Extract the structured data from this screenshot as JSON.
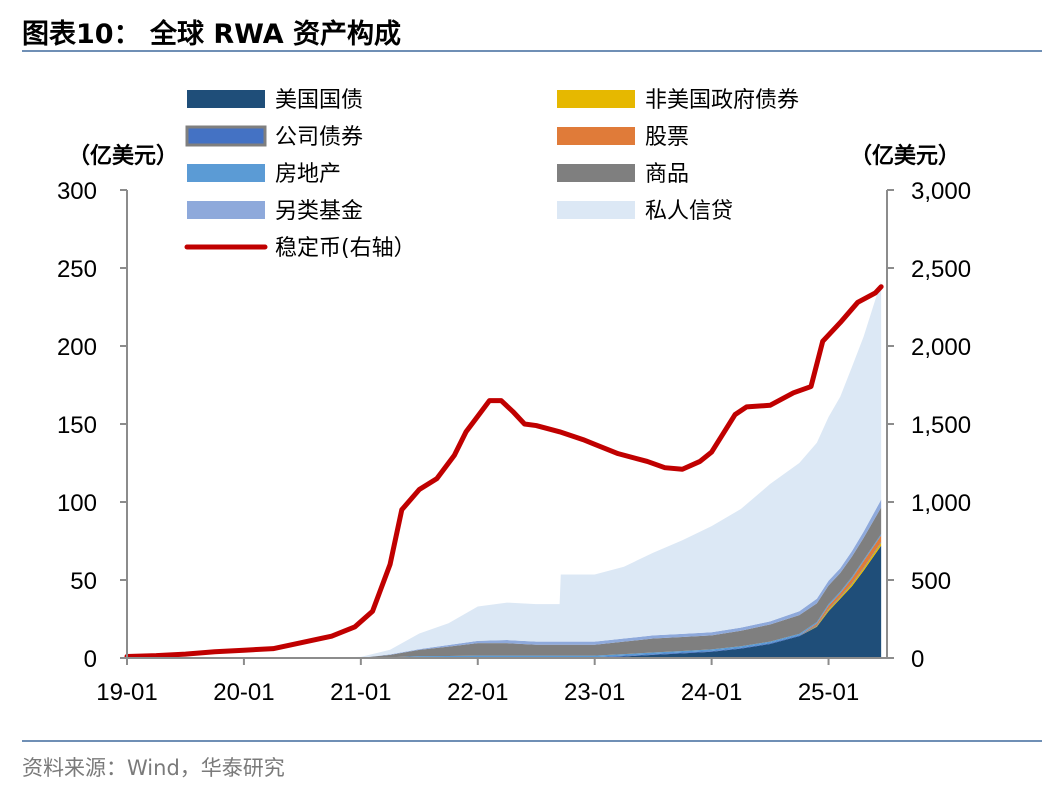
{
  "header": {
    "title": "图表10：  全球 RWA 资产构成"
  },
  "footer": {
    "source": "资料来源：Wind，华泰研究"
  },
  "colors": {
    "us_treasury": "#1f4e79",
    "corporate_bond": "#4472c4",
    "real_estate": "#5b9bd5",
    "alt_fund": "#8ea9db",
    "non_us_gov": "#e6b800",
    "stocks": "#e07b39",
    "commodities": "#7f7f7f",
    "private_credit": "#dce8f5",
    "stablecoin": "#c00000",
    "axis": "#8c8c8c"
  },
  "chart_data": {
    "type": "area",
    "left_unit": "（亿美元）",
    "right_unit": "（亿美元）",
    "left_ylim": [
      0,
      300
    ],
    "right_ylim": [
      0,
      3000
    ],
    "left_ticks": [
      "0",
      "50",
      "100",
      "150",
      "200",
      "250",
      "300"
    ],
    "right_ticks": [
      "0",
      "500",
      "1,000",
      "1,500",
      "2,000",
      "2,500",
      "3,000"
    ],
    "x_ticks": [
      "19-01",
      "20-01",
      "21-01",
      "22-01",
      "23-01",
      "24-01",
      "25-01"
    ],
    "grid": false,
    "legend_placement": "top",
    "x": [
      2019.0,
      2019.5,
      2020.0,
      2020.5,
      2021.0,
      2021.25,
      2021.5,
      2021.75,
      2022.0,
      2022.25,
      2022.5,
      2022.7,
      2022.71,
      2023.0,
      2023.25,
      2023.5,
      2023.75,
      2024.0,
      2024.25,
      2024.5,
      2024.75,
      2024.9,
      2025.0,
      2025.1,
      2025.2,
      2025.3,
      2025.45
    ],
    "stacked_series": [
      {
        "name": "美国国债",
        "key": "us_treasury",
        "values": [
          0,
          0,
          0,
          0,
          0,
          0,
          0,
          0,
          0,
          0,
          0,
          0,
          0,
          0,
          1,
          2,
          3,
          4,
          6,
          9,
          14,
          20,
          30,
          38,
          46,
          56,
          72
        ]
      },
      {
        "name": "非美国政府债券",
        "key": "non_us_gov",
        "values": [
          0,
          0,
          0,
          0,
          0,
          0,
          0,
          0,
          0,
          0,
          0,
          0,
          0,
          0,
          0,
          0,
          0,
          0,
          0,
          0,
          0,
          0.5,
          1,
          1,
          1.5,
          1.5,
          2
        ]
      },
      {
        "name": "公司债券",
        "key": "corporate_bond",
        "values": [
          0,
          0,
          0,
          0,
          0,
          0,
          0.2,
          0.3,
          0.5,
          0.5,
          0.5,
          0.5,
          0.5,
          0.5,
          0.5,
          0.5,
          0.5,
          0.5,
          0.5,
          0.5,
          0.5,
          0.5,
          0.5,
          0.5,
          0.5,
          0.5,
          0.5
        ]
      },
      {
        "name": "股票",
        "key": "stocks",
        "values": [
          0,
          0,
          0,
          0,
          0,
          0,
          0,
          0,
          0,
          0,
          0,
          0,
          0,
          0,
          0,
          0,
          0,
          0,
          0,
          0,
          0,
          1,
          2,
          2,
          3,
          4,
          4
        ]
      },
      {
        "name": "房地产",
        "key": "real_estate",
        "values": [
          0,
          0,
          0,
          0,
          0,
          0.5,
          1,
          1,
          1,
          1,
          1,
          1,
          1,
          1,
          1,
          1,
          1,
          1,
          1,
          1,
          1,
          1,
          1,
          1,
          1,
          1,
          1
        ]
      },
      {
        "name": "商品",
        "key": "commodities",
        "values": [
          0,
          0,
          0,
          0,
          0.2,
          1.5,
          4,
          6,
          8,
          8,
          7,
          7,
          7,
          7,
          8,
          9,
          9,
          9,
          10,
          11,
          12,
          12,
          12,
          12,
          13,
          14,
          17
        ]
      },
      {
        "name": "另类基金",
        "key": "alt_fund",
        "values": [
          0,
          0,
          0,
          0,
          0,
          0.3,
          0.5,
          1,
          1.5,
          2,
          2,
          2,
          2,
          2,
          2,
          2,
          2,
          2,
          2,
          2,
          2.5,
          3,
          3,
          3,
          3.5,
          4,
          5
        ]
      },
      {
        "name": "私人信贷",
        "key": "private_credit",
        "values": [
          0,
          0,
          0,
          0,
          0.5,
          3,
          10,
          14,
          22,
          24,
          24,
          24,
          43,
          43,
          46,
          53,
          60,
          68,
          76,
          88,
          95,
          100,
          105,
          110,
          118,
          125,
          140
        ]
      }
    ],
    "line_series": {
      "name": "稳定币(右轴)",
      "key": "stablecoin",
      "axis": "right",
      "x": [
        2019.0,
        2019.25,
        2019.5,
        2019.75,
        2020.0,
        2020.25,
        2020.5,
        2020.75,
        2020.95,
        2021.1,
        2021.25,
        2021.35,
        2021.5,
        2021.65,
        2021.8,
        2021.9,
        2022.0,
        2022.1,
        2022.2,
        2022.3,
        2022.4,
        2022.5,
        2022.7,
        2022.9,
        2023.0,
        2023.2,
        2023.45,
        2023.6,
        2023.75,
        2023.9,
        2024.0,
        2024.2,
        2024.3,
        2024.5,
        2024.7,
        2024.85,
        2024.95,
        2025.1,
        2025.25,
        2025.4,
        2025.45
      ],
      "values": [
        10,
        15,
        25,
        40,
        50,
        60,
        100,
        140,
        200,
        300,
        600,
        950,
        1080,
        1150,
        1300,
        1450,
        1550,
        1650,
        1650,
        1580,
        1500,
        1490,
        1450,
        1400,
        1370,
        1310,
        1260,
        1220,
        1210,
        1260,
        1320,
        1560,
        1610,
        1620,
        1700,
        1740,
        2030,
        2150,
        2280,
        2340,
        2380
      ]
    }
  },
  "legend": [
    {
      "label": "美国国债",
      "key": "us_treasury",
      "kind": "box"
    },
    {
      "label": "非美国政府债券",
      "key": "non_us_gov",
      "kind": "box"
    },
    {
      "label": "公司债券",
      "key": "corporate_bond",
      "kind": "box"
    },
    {
      "label": "股票",
      "key": "stocks",
      "kind": "box"
    },
    {
      "label": "房地产",
      "key": "real_estate",
      "kind": "box"
    },
    {
      "label": "商品",
      "key": "commodities",
      "kind": "box"
    },
    {
      "label": "另类基金",
      "key": "alt_fund",
      "kind": "box"
    },
    {
      "label": "私人信贷",
      "key": "private_credit",
      "kind": "box"
    },
    {
      "label": "稳定币(右轴）",
      "key": "stablecoin",
      "kind": "line"
    }
  ]
}
